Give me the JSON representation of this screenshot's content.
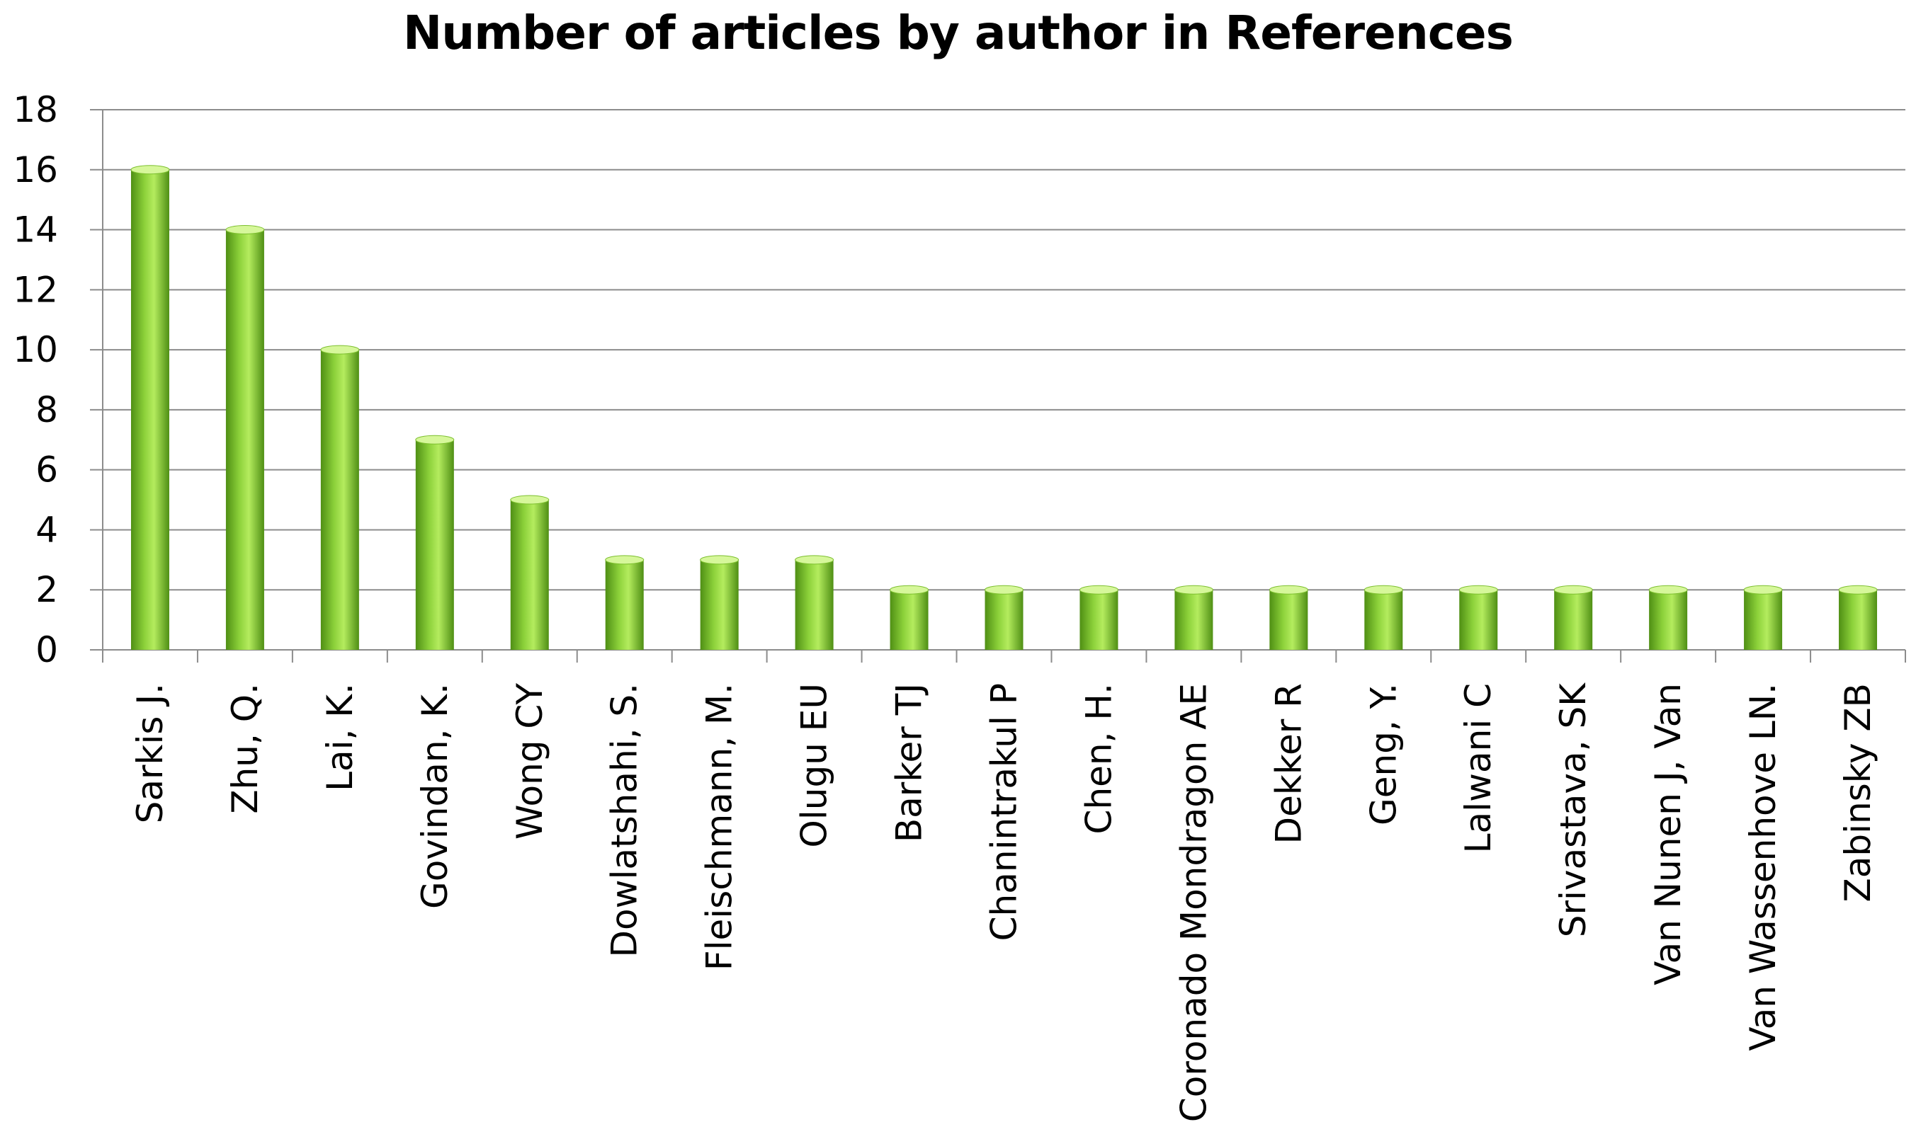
{
  "chart_data": {
    "type": "bar",
    "title": "Number of articles by author in References",
    "xlabel": "",
    "ylabel": "",
    "ylim": [
      0,
      18
    ],
    "yticks": [
      0,
      2,
      4,
      6,
      8,
      10,
      12,
      14,
      16,
      18
    ],
    "grid": true,
    "legend": "none",
    "categories": [
      "Sarkis J.",
      "Zhu, Q.",
      "Lai, K.",
      "Govindan, K.",
      "Wong CY",
      "Dowlatshahi, S.",
      "Fleischmann, M.",
      "Olugu EU",
      "Barker TJ",
      "Chanintrakul P",
      "Chen, H.",
      "Coronado Mondragon AE",
      "Dekker R",
      "Geng, Y.",
      "Lalwani C",
      "Srivastava, SK",
      "Van Nunen J, Van",
      "Van Wassenhove LN.",
      "Zabinsky ZB"
    ],
    "values": [
      16,
      14,
      10,
      7,
      5,
      3,
      3,
      3,
      2,
      2,
      2,
      2,
      2,
      2,
      2,
      2,
      2,
      2,
      2
    ],
    "colors": {
      "bar_dark": "#4f8f14",
      "bar_mid": "#8cd13a",
      "bar_light": "#b4ec5e",
      "bar_top": "#d6f79a",
      "grid": "#8c8c8c",
      "axis": "#8c8c8c"
    }
  }
}
